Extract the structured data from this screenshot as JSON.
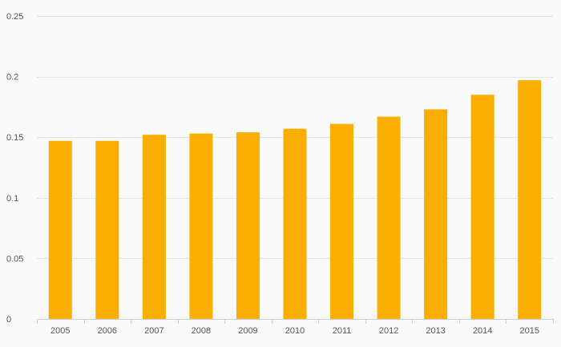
{
  "chart_data": {
    "type": "bar",
    "categories": [
      "2005",
      "2006",
      "2007",
      "2008",
      "2009",
      "2010",
      "2011",
      "2012",
      "2013",
      "2014",
      "2015"
    ],
    "values": [
      0.147,
      0.147,
      0.152,
      0.153,
      0.154,
      0.157,
      0.161,
      0.167,
      0.173,
      0.185,
      0.197
    ],
    "ylim": [
      0,
      0.25
    ],
    "yticks": [
      "0",
      "0.05",
      "0.1",
      "0.15",
      "0.2",
      "0.25"
    ],
    "bar_color": "#f9ae00",
    "grid": true,
    "legend": "none"
  }
}
